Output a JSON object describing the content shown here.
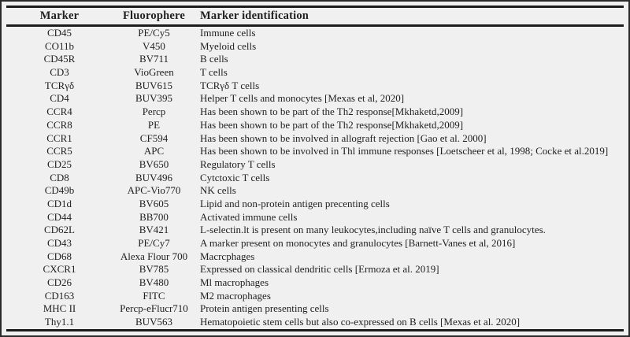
{
  "colors": {
    "page_background": "#f0f0f0",
    "frame_border": "#2a2a2a",
    "rule": "#1c1c1c",
    "text": "#1f1f1f"
  },
  "table": {
    "columns": [
      {
        "label": "Marker"
      },
      {
        "label": "Fluorophere"
      },
      {
        "label": "Marker identification"
      }
    ],
    "rows": [
      {
        "marker": "CD45",
        "fluorophore": "PE/Cy5",
        "identification": "Immune cells"
      },
      {
        "marker": "CO11b",
        "fluorophore": "V450",
        "identification": "Myeloid cells"
      },
      {
        "marker": "CD45R",
        "fluorophore": "BV711",
        "identification": "B cells"
      },
      {
        "marker": "CD3",
        "fluorophore": "VioGreen",
        "identification": "T cells"
      },
      {
        "marker": "TCRγδ",
        "fluorophore": "BUV615",
        "identification": "TCRγδ T cells"
      },
      {
        "marker": "CD4",
        "fluorophore": "BUV395",
        "identification": "Helper T cells and monocytes [Mexas et al, 2020]"
      },
      {
        "marker": "CCR4",
        "fluorophore": "Percp",
        "identification": "Has been shown to be part of the Th2 response[Mkhaketd,2009]"
      },
      {
        "marker": "CCR8",
        "fluorophore": "PE",
        "identification": "Has been shown to be part of the Th2 response[Mkhaketd,2009]"
      },
      {
        "marker": "CCR1",
        "fluorophore": "CF594",
        "identification": "Has been shown to be involved in allograft rejection [Gao et al. 2000]"
      },
      {
        "marker": "CCR5",
        "fluorophore": "APC",
        "identification": "Has been shown to be involved in Thl immune responses [Loetscheer et al, 1998; Cocke et al.2019]"
      },
      {
        "marker": "CD25",
        "fluorophore": "BV650",
        "identification": "Regulatory T cells"
      },
      {
        "marker": "CD8",
        "fluorophore": "BUV496",
        "identification": "Cytctoxic T cells"
      },
      {
        "marker": "CD49b",
        "fluorophore": "APC-Vio770",
        "identification": "NK cells"
      },
      {
        "marker": "CD1d",
        "fluorophore": "BV605",
        "identification": "Lipid and non-protein antigen precenting cells"
      },
      {
        "marker": "CD44",
        "fluorophore": "BB700",
        "identification": "Activated immune cells"
      },
      {
        "marker": "CD62L",
        "fluorophore": "BV421",
        "identification": "L-selectin.lt is present on many leukocytes,including naïve T cells and granulocytes."
      },
      {
        "marker": "CD43",
        "fluorophore": "PE/Cy7",
        "identification": "A marker present on monocytes and granulocytes [Barnett-Vanes et al, 2016]"
      },
      {
        "marker": "CD68",
        "fluorophore": "Alexa Flour 700",
        "identification": "Macrcphages"
      },
      {
        "marker": "CXCR1",
        "fluorophore": "BV785",
        "identification": "Expressed on classical dendritic cells [Ermoza et al. 2019]"
      },
      {
        "marker": "CD26",
        "fluorophore": "BV480",
        "identification": "Ml macrophages"
      },
      {
        "marker": "CD163",
        "fluorophore": "FITC",
        "identification": "M2 macrophages"
      },
      {
        "marker": "MHC II",
        "fluorophore": "Percp-eFlucr710",
        "identification": "Protein antigen presenting cells"
      },
      {
        "marker": "Thy1.1",
        "fluorophore": "BUV563",
        "identification": "Hematopoietic stem cells but also co-expressed on B cells [Mexas et al. 2020]"
      }
    ]
  }
}
